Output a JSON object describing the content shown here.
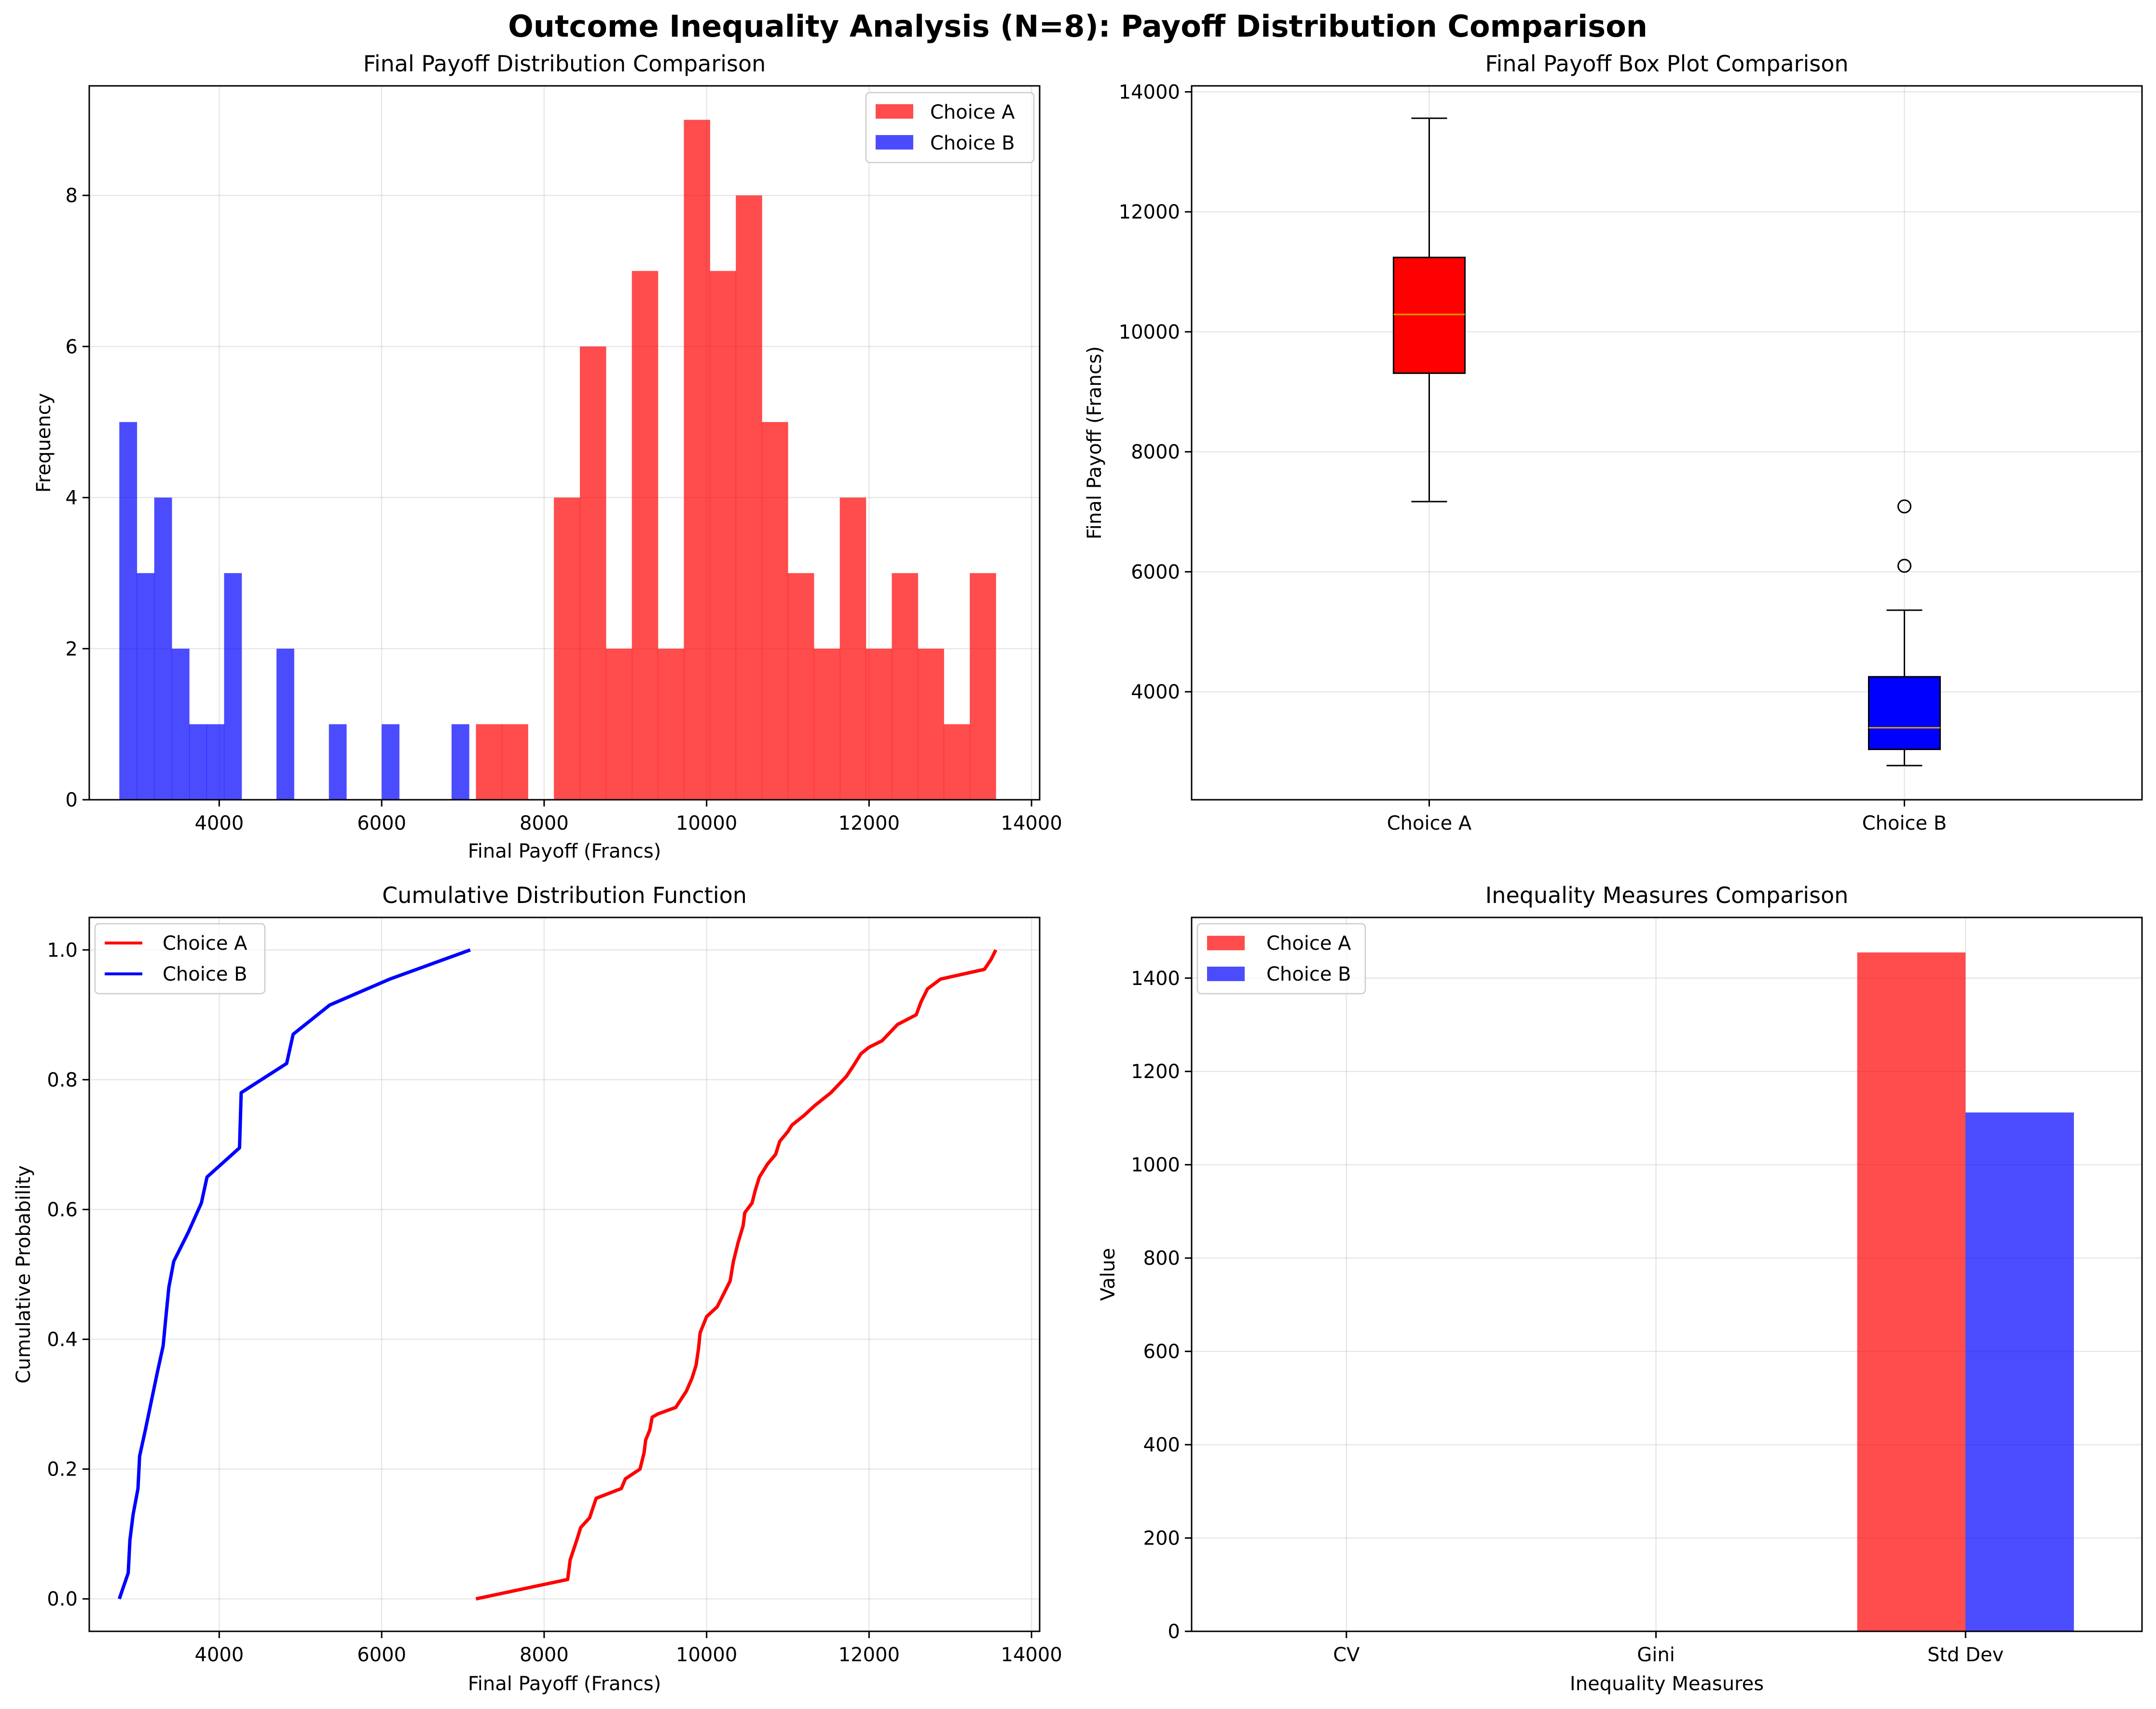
{
  "figure_title": "Outcome Inequality Analysis (N=8): Payoff Distribution Comparison",
  "colors": {
    "A": "#ff0000",
    "B": "#0000ff",
    "median": "#d9a400"
  },
  "chart_data": [
    {
      "type": "bar",
      "subtype": "histogram",
      "title": "Final Payoff Distribution Comparison",
      "xlabel": "Final Payoff (Francs)",
      "ylabel": "Frequency",
      "xlim": [
        2400,
        14100
      ],
      "ylim": [
        0,
        9.45
      ],
      "xticks": [
        4000,
        6000,
        8000,
        10000,
        12000,
        14000
      ],
      "yticks": [
        0,
        2,
        4,
        6,
        8
      ],
      "grid": true,
      "legend_position": "top-right",
      "series": [
        {
          "name": "Choice A",
          "color": "#ff0000",
          "alpha": 0.7,
          "bins": [
            {
              "x0": 7160,
              "x1": 7480,
              "value": 1
            },
            {
              "x0": 7480,
              "x1": 7800,
              "value": 1
            },
            {
              "x0": 7800,
              "x1": 8120,
              "value": 0
            },
            {
              "x0": 8120,
              "x1": 8440,
              "value": 4
            },
            {
              "x0": 8440,
              "x1": 8760,
              "value": 6
            },
            {
              "x0": 8760,
              "x1": 9080,
              "value": 2
            },
            {
              "x0": 9080,
              "x1": 9400,
              "value": 7
            },
            {
              "x0": 9400,
              "x1": 9720,
              "value": 2
            },
            {
              "x0": 9720,
              "x1": 10040,
              "value": 9
            },
            {
              "x0": 10040,
              "x1": 10360,
              "value": 7
            },
            {
              "x0": 10360,
              "x1": 10680,
              "value": 8
            },
            {
              "x0": 10680,
              "x1": 11000,
              "value": 5
            },
            {
              "x0": 11000,
              "x1": 11320,
              "value": 3
            },
            {
              "x0": 11320,
              "x1": 11640,
              "value": 2
            },
            {
              "x0": 11640,
              "x1": 11960,
              "value": 4
            },
            {
              "x0": 11960,
              "x1": 12280,
              "value": 2
            },
            {
              "x0": 12280,
              "x1": 12600,
              "value": 3
            },
            {
              "x0": 12600,
              "x1": 12920,
              "value": 2
            },
            {
              "x0": 12920,
              "x1": 13240,
              "value": 1
            },
            {
              "x0": 13240,
              "x1": 13560,
              "value": 3
            }
          ]
        },
        {
          "name": "Choice B",
          "color": "#0000ff",
          "alpha": 0.7,
          "bins": [
            {
              "x0": 2770,
              "x1": 2985,
              "value": 5
            },
            {
              "x0": 2985,
              "x1": 3200,
              "value": 3
            },
            {
              "x0": 3200,
              "x1": 3415,
              "value": 4
            },
            {
              "x0": 3415,
              "x1": 3630,
              "value": 2
            },
            {
              "x0": 3630,
              "x1": 3845,
              "value": 1
            },
            {
              "x0": 3845,
              "x1": 4060,
              "value": 1
            },
            {
              "x0": 4060,
              "x1": 4275,
              "value": 3
            },
            {
              "x0": 4705,
              "x1": 4920,
              "value": 2
            },
            {
              "x0": 5350,
              "x1": 5565,
              "value": 1
            },
            {
              "x0": 6000,
              "x1": 6215,
              "value": 1
            },
            {
              "x0": 6860,
              "x1": 7075,
              "value": 1
            }
          ]
        }
      ]
    },
    {
      "type": "box",
      "title": "Final Payoff Box Plot Comparison",
      "ylabel": "Final Payoff (Francs)",
      "categories": [
        "Choice A",
        "Choice B"
      ],
      "ylim": [
        2200,
        14100
      ],
      "yticks": [
        4000,
        6000,
        8000,
        10000,
        12000,
        14000
      ],
      "grid": true,
      "boxes": [
        {
          "name": "Choice A",
          "color": "#ff0000",
          "whisker_low": 7170,
          "q1": 9310,
          "median": 10290,
          "q3": 11240,
          "whisker_high": 13560,
          "outliers": []
        },
        {
          "name": "Choice B",
          "color": "#0000ff",
          "whisker_low": 2770,
          "q1": 3040,
          "median": 3400,
          "q3": 4250,
          "whisker_high": 5360,
          "outliers": [
            6100,
            7090
          ]
        }
      ]
    },
    {
      "type": "line",
      "title": "Cumulative Distribution Function",
      "xlabel": "Final Payoff (Francs)",
      "ylabel": "Cumulative Probability",
      "xlim": [
        2400,
        14100
      ],
      "ylim": [
        -0.05,
        1.05
      ],
      "xticks": [
        4000,
        6000,
        8000,
        10000,
        12000,
        14000
      ],
      "yticks": [
        0.0,
        0.2,
        0.4,
        0.6,
        0.8,
        1.0
      ],
      "grid": true,
      "legend_position": "top-left",
      "series": [
        {
          "name": "Choice A",
          "color": "#ff0000",
          "points": [
            [
              7160,
              0.0
            ],
            [
              8290,
              0.03
            ],
            [
              8320,
              0.06
            ],
            [
              8400,
              0.09
            ],
            [
              8450,
              0.11
            ],
            [
              8560,
              0.125
            ],
            [
              8640,
              0.155
            ],
            [
              8950,
              0.17
            ],
            [
              9000,
              0.185
            ],
            [
              9180,
              0.2
            ],
            [
              9230,
              0.225
            ],
            [
              9250,
              0.245
            ],
            [
              9300,
              0.26
            ],
            [
              9330,
              0.28
            ],
            [
              9400,
              0.285
            ],
            [
              9620,
              0.295
            ],
            [
              9750,
              0.32
            ],
            [
              9820,
              0.34
            ],
            [
              9870,
              0.36
            ],
            [
              9900,
              0.385
            ],
            [
              9920,
              0.41
            ],
            [
              10000,
              0.435
            ],
            [
              10130,
              0.45
            ],
            [
              10210,
              0.47
            ],
            [
              10290,
              0.49
            ],
            [
              10330,
              0.52
            ],
            [
              10390,
              0.55
            ],
            [
              10450,
              0.575
            ],
            [
              10470,
              0.595
            ],
            [
              10560,
              0.61
            ],
            [
              10600,
              0.63
            ],
            [
              10650,
              0.65
            ],
            [
              10750,
              0.67
            ],
            [
              10850,
              0.685
            ],
            [
              10900,
              0.705
            ],
            [
              11000,
              0.72
            ],
            [
              11050,
              0.73
            ],
            [
              11200,
              0.745
            ],
            [
              11330,
              0.76
            ],
            [
              11530,
              0.78
            ],
            [
              11720,
              0.805
            ],
            [
              11800,
              0.82
            ],
            [
              11900,
              0.84
            ],
            [
              12000,
              0.85
            ],
            [
              12160,
              0.86
            ],
            [
              12350,
              0.885
            ],
            [
              12580,
              0.9
            ],
            [
              12640,
              0.92
            ],
            [
              12720,
              0.94
            ],
            [
              12880,
              0.955
            ],
            [
              13420,
              0.97
            ],
            [
              13500,
              0.985
            ],
            [
              13560,
              1.0
            ]
          ]
        },
        {
          "name": "Choice B",
          "color": "#0000ff",
          "points": [
            [
              2770,
              0.0
            ],
            [
              2880,
              0.04
            ],
            [
              2900,
              0.09
            ],
            [
              2940,
              0.13
            ],
            [
              3000,
              0.17
            ],
            [
              3020,
              0.22
            ],
            [
              3090,
              0.26
            ],
            [
              3240,
              0.35
            ],
            [
              3310,
              0.39
            ],
            [
              3340,
              0.43
            ],
            [
              3380,
              0.48
            ],
            [
              3440,
              0.52
            ],
            [
              3620,
              0.565
            ],
            [
              3780,
              0.61
            ],
            [
              3850,
              0.65
            ],
            [
              4250,
              0.695
            ],
            [
              4270,
              0.78
            ],
            [
              4830,
              0.825
            ],
            [
              4910,
              0.87
            ],
            [
              5360,
              0.915
            ],
            [
              6100,
              0.955
            ],
            [
              7090,
              1.0
            ]
          ]
        }
      ]
    },
    {
      "type": "bar",
      "title": "Inequality Measures Comparison",
      "xlabel": "Inequality Measures",
      "ylabel": "Value",
      "categories": [
        "CV",
        "Gini",
        "Std Dev"
      ],
      "ylim": [
        0,
        1530
      ],
      "yticks": [
        0,
        200,
        400,
        600,
        800,
        1000,
        1200,
        1400
      ],
      "grid": true,
      "legend_position": "top-left",
      "series": [
        {
          "name": "Choice A",
          "color": "#ff0000",
          "alpha": 0.7,
          "values": [
            0.14,
            0.08,
            1455
          ]
        },
        {
          "name": "Choice B",
          "color": "#0000ff",
          "alpha": 0.7,
          "values": [
            0.29,
            0.15,
            1112
          ]
        }
      ]
    }
  ]
}
